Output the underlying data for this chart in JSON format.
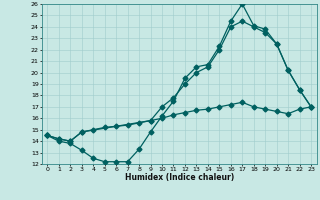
{
  "xlabel": "Humidex (Indice chaleur)",
  "xlim": [
    -0.5,
    23.5
  ],
  "ylim": [
    12,
    26
  ],
  "xticks": [
    0,
    1,
    2,
    3,
    4,
    5,
    6,
    7,
    8,
    9,
    10,
    11,
    12,
    13,
    14,
    15,
    16,
    17,
    18,
    19,
    20,
    21,
    22,
    23
  ],
  "yticks": [
    12,
    13,
    14,
    15,
    16,
    17,
    18,
    19,
    20,
    21,
    22,
    23,
    24,
    25,
    26
  ],
  "bg_color": "#c8e8e4",
  "grid_color": "#a0cccc",
  "line_color": "#006060",
  "line1_x": [
    0,
    1,
    2,
    3,
    4,
    5,
    6,
    7,
    8,
    9,
    10,
    11,
    12,
    13,
    14,
    15,
    16,
    17,
    18,
    19,
    20,
    21,
    22,
    23
  ],
  "line1_y": [
    14.5,
    14.0,
    13.8,
    13.2,
    12.5,
    12.2,
    12.2,
    12.2,
    13.3,
    14.8,
    16.2,
    17.5,
    19.5,
    20.5,
    20.7,
    22.3,
    24.5,
    26.0,
    24.1,
    23.8,
    22.5,
    20.2,
    18.5,
    17.0
  ],
  "line2_x": [
    0,
    1,
    2,
    3,
    4,
    5,
    6,
    7,
    8,
    9,
    10,
    11,
    12,
    13,
    14,
    15,
    16,
    17,
    18,
    19,
    20,
    21,
    22,
    23
  ],
  "line2_y": [
    14.5,
    14.2,
    14.0,
    14.8,
    15.0,
    15.2,
    15.3,
    15.4,
    15.6,
    15.8,
    16.0,
    16.3,
    16.5,
    16.7,
    16.8,
    17.0,
    17.2,
    17.4,
    17.0,
    16.8,
    16.6,
    16.4,
    16.8,
    17.0
  ],
  "line3_x": [
    0,
    1,
    2,
    3,
    9,
    10,
    11,
    12,
    13,
    14,
    15,
    16,
    17,
    18,
    19,
    20,
    21,
    22,
    23
  ],
  "line3_y": [
    14.5,
    14.2,
    14.0,
    14.8,
    15.8,
    17.0,
    17.8,
    19.0,
    20.0,
    20.5,
    22.0,
    24.0,
    24.5,
    24.0,
    23.5,
    22.5,
    20.2,
    18.5,
    17.0
  ],
  "markersize": 2.5,
  "linewidth": 0.9,
  "figsize": [
    3.2,
    2.0
  ],
  "dpi": 100
}
